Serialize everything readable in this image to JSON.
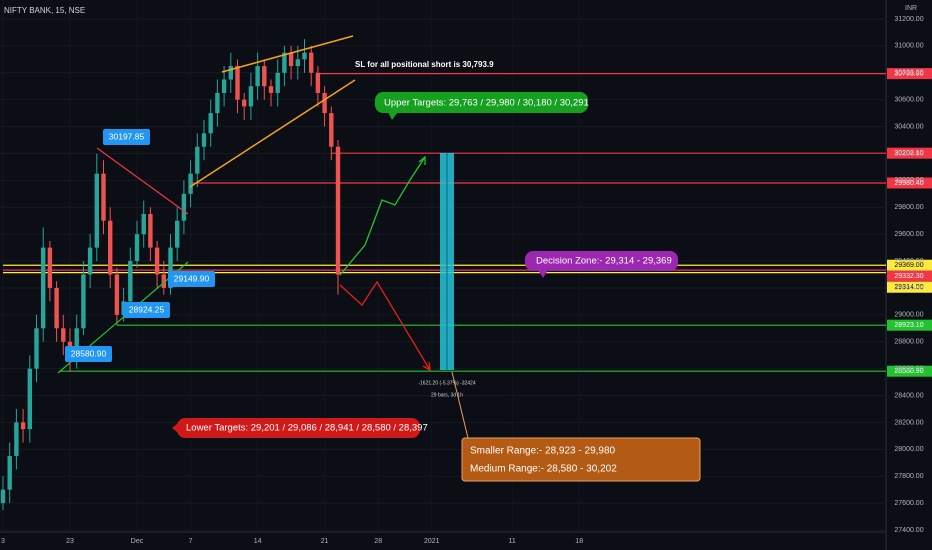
{
  "chart_data": {
    "type": "candlestick",
    "title": "NIFTY BANK, 15, NSE",
    "y_axis_label": "INR",
    "x": [
      0,
      0.5,
      1,
      1.5,
      2,
      2.5,
      3,
      3.5,
      4,
      4.5,
      5,
      5.5,
      6,
      6.5,
      7,
      7.5,
      8,
      8.5,
      9,
      9.5,
      10,
      10.5,
      11,
      11.5,
      12,
      12.5,
      13,
      13.5,
      14,
      14.5,
      15,
      15.5,
      16,
      16.5,
      17,
      17.5,
      18,
      18.5,
      19,
      19.5,
      20,
      20.5,
      21,
      21.5,
      22,
      22.5,
      23,
      23.5,
      24,
      24.5,
      25
    ],
    "open": [
      27600,
      27700,
      27950,
      28200,
      28150,
      28600,
      28900,
      29500,
      29200,
      28900,
      28800,
      28650,
      28900,
      29300,
      29500,
      30050,
      29700,
      29300,
      29000,
      29100,
      29400,
      29600,
      29750,
      29500,
      29300,
      29200,
      29500,
      29700,
      29900,
      30050,
      30250,
      30350,
      30500,
      30650,
      30750,
      30850,
      30600,
      30550,
      30700,
      30850,
      30700,
      30650,
      30800,
      30950,
      30850,
      30900,
      30950,
      30800,
      30650,
      30500,
      30250
    ],
    "high": [
      27800,
      28050,
      28300,
      28300,
      28700,
      29000,
      29650,
      29550,
      29250,
      29000,
      28900,
      29000,
      29400,
      29600,
      30198,
      30150,
      29800,
      29350,
      29200,
      29500,
      29700,
      29850,
      29800,
      29550,
      29400,
      29600,
      29800,
      30000,
      30150,
      30350,
      30450,
      30600,
      30750,
      30850,
      30950,
      30900,
      30650,
      30800,
      30950,
      30900,
      30750,
      30900,
      31000,
      31000,
      31000,
      31050,
      31000,
      30850,
      30700,
      30550,
      30300
    ],
    "low": [
      27550,
      27600,
      27850,
      28050,
      28050,
      28500,
      28800,
      29100,
      28800,
      28700,
      28580,
      28600,
      28850,
      29200,
      29400,
      29600,
      29200,
      28924,
      28950,
      29050,
      29350,
      29500,
      29400,
      29200,
      29150,
      29150,
      29400,
      29600,
      29800,
      29950,
      30150,
      30250,
      30400,
      30550,
      30650,
      30500,
      30450,
      30450,
      30600,
      30600,
      30550,
      30550,
      30700,
      30750,
      30750,
      30800,
      30700,
      30550,
      30400,
      30150,
      29150
    ],
    "close": [
      27700,
      27950,
      28200,
      28150,
      28600,
      28900,
      29500,
      29200,
      28900,
      28800,
      28650,
      28900,
      29300,
      29500,
      30050,
      29700,
      29300,
      29000,
      29100,
      29400,
      29600,
      29750,
      29500,
      29300,
      29200,
      29500,
      29700,
      29900,
      30050,
      30250,
      30350,
      30500,
      30650,
      30750,
      30850,
      30600,
      30550,
      30700,
      30850,
      30700,
      30650,
      30800,
      30950,
      30850,
      30900,
      30950,
      30800,
      30650,
      30500,
      30250,
      29300
    ],
    "up_color": "#26a69a",
    "down_color": "#ef5350",
    "xlim": [
      0,
      66
    ],
    "xticks": [
      {
        "value": 0,
        "label": "3"
      },
      {
        "value": 5,
        "label": "23"
      },
      {
        "value": 10,
        "label": "Dec"
      },
      {
        "value": 14,
        "label": "7"
      },
      {
        "value": 19,
        "label": "14"
      },
      {
        "value": 24,
        "label": "21"
      },
      {
        "value": 28,
        "label": "28"
      },
      {
        "value": 32,
        "label": "2021"
      },
      {
        "value": 38,
        "label": "11"
      },
      {
        "value": 43,
        "label": "18"
      }
    ],
    "ylim": [
      27400,
      31200
    ],
    "yticks": [
      {
        "value": 27400,
        "label": "27400.00"
      },
      {
        "value": 27600,
        "label": "27600.00"
      },
      {
        "value": 27800,
        "label": "27800.00"
      },
      {
        "value": 28000,
        "label": "28000.00"
      },
      {
        "value": 28200,
        "label": "28200.00"
      },
      {
        "value": 28400,
        "label": "28400.00"
      },
      {
        "value": 28600,
        "label": "28600.00"
      },
      {
        "value": 28800,
        "label": "28800.00"
      },
      {
        "value": 29000,
        "label": "29000.00"
      },
      {
        "value": 29200,
        "label": "29200.00"
      },
      {
        "value": 29400,
        "label": "29400.00"
      },
      {
        "value": 29600,
        "label": "29600.00"
      },
      {
        "value": 29800,
        "label": "29800.00"
      },
      {
        "value": 30000,
        "label": "30000.00"
      },
      {
        "value": 30200,
        "label": "30200.00"
      },
      {
        "value": 30400,
        "label": "30400.00"
      },
      {
        "value": 30600,
        "label": "30600.00"
      },
      {
        "value": 30800,
        "label": "30800.00"
      },
      {
        "value": 31000,
        "label": "31000.00"
      },
      {
        "value": 31200,
        "label": "31200.00"
      }
    ],
    "levels": [
      {
        "value": 30793.9,
        "label": "30793.90",
        "color": "#f23645",
        "start": 23.5
      },
      {
        "value": 30202.1,
        "label": "30202.10",
        "color": "#f23645",
        "start": 24.5
      },
      {
        "value": 29980.4,
        "label": "29980.40",
        "color": "#f23645",
        "start": 14
      },
      {
        "value": 29369,
        "label": "29369.00",
        "color": "#ffeb3b",
        "start": 0
      },
      {
        "value": 29332.3,
        "label": "29332.30",
        "color": "#f23645",
        "start": 0
      },
      {
        "value": 29314,
        "label": "29314.00",
        "color": "#ffeb3b",
        "start": 0
      },
      {
        "value": 28923.1,
        "label": "28923.10",
        "color": "#22c32e",
        "start": 8.5
      },
      {
        "value": 28580.9,
        "label": "28580.90",
        "color": "#22c32e",
        "start": 4.2
      }
    ],
    "price_labels": [
      "30197.85",
      "29149.90",
      "28924.25",
      "28580.90"
    ],
    "sl_note": "SL for all positional short is 30,793.9",
    "upper_targets": "Upper Targets: 29,763 / 29,980 / 30,180 / 30,291",
    "decision_zone": "Decision Zone:- 29,314 - 29,369",
    "lower_targets": "Lower Targets: 29,201 / 29,086 / 28,941 / 28,580 / 28,397",
    "ranges": [
      "Smaller Range:- 28,923 - 29,980",
      "Medium Range:- 28,580 - 30,202"
    ],
    "measure": [
      "-1621.20 (-5.37%) -32424",
      "29 bars, 3d 1h"
    ]
  }
}
